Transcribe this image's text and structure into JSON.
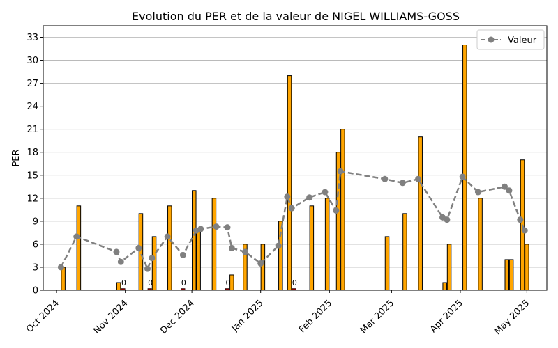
{
  "chart_data": {
    "type": "bar",
    "title": "Evolution du PER et de la valeur de NIGEL WILLIAMS-GOSS",
    "xlabel": "",
    "ylabel": "PER",
    "ylim": [
      0,
      34.5
    ],
    "yticks": [
      0,
      3,
      6,
      9,
      12,
      15,
      18,
      21,
      24,
      27,
      30,
      33
    ],
    "xlim": [
      "2024-09-25",
      "2025-05-10"
    ],
    "xticks": [
      {
        "date": "2024-10-01",
        "label": "Oct 2024"
      },
      {
        "date": "2024-11-01",
        "label": "Nov 2024"
      },
      {
        "date": "2024-12-01",
        "label": "Dec 2024"
      },
      {
        "date": "2025-01-01",
        "label": "Jan 2025"
      },
      {
        "date": "2025-02-01",
        "label": "Feb 2025"
      },
      {
        "date": "2025-03-01",
        "label": "Mar 2025"
      },
      {
        "date": "2025-04-01",
        "label": "Apr 2025"
      },
      {
        "date": "2025-05-01",
        "label": "May 2025"
      }
    ],
    "grid": "y",
    "legend_position": "top-right",
    "bar_color": "#FFA500",
    "bar_edge_color": "#000000",
    "zero_bar_color": "#8B0000",
    "line_color": "#808080",
    "per_bars": [
      {
        "date": "2024-10-04",
        "value": 3
      },
      {
        "date": "2024-10-11",
        "value": 11
      },
      {
        "date": "2024-10-29",
        "value": 1
      },
      {
        "date": "2024-10-31",
        "value": 0
      },
      {
        "date": "2024-11-08",
        "value": 10
      },
      {
        "date": "2024-11-12",
        "value": 0
      },
      {
        "date": "2024-11-14",
        "value": 7
      },
      {
        "date": "2024-11-21",
        "value": 11
      },
      {
        "date": "2024-11-27",
        "value": 0
      },
      {
        "date": "2024-12-02",
        "value": 13
      },
      {
        "date": "2024-12-04",
        "value": 8
      },
      {
        "date": "2024-12-11",
        "value": 12
      },
      {
        "date": "2024-12-17",
        "value": 0
      },
      {
        "date": "2024-12-19",
        "value": 2
      },
      {
        "date": "2024-12-25",
        "value": 6
      },
      {
        "date": "2025-01-02",
        "value": 6
      },
      {
        "date": "2025-01-10",
        "value": 9
      },
      {
        "date": "2025-01-14",
        "value": 28
      },
      {
        "date": "2025-01-16",
        "value": 0
      },
      {
        "date": "2025-01-24",
        "value": 11
      },
      {
        "date": "2025-01-31",
        "value": 12
      },
      {
        "date": "2025-02-05",
        "value": 18
      },
      {
        "date": "2025-02-07",
        "value": 21
      },
      {
        "date": "2025-02-27",
        "value": 7
      },
      {
        "date": "2025-03-07",
        "value": 10
      },
      {
        "date": "2025-03-14",
        "value": 20
      },
      {
        "date": "2025-03-25",
        "value": 1
      },
      {
        "date": "2025-03-27",
        "value": 6
      },
      {
        "date": "2025-04-03",
        "value": 32
      },
      {
        "date": "2025-04-10",
        "value": 12
      },
      {
        "date": "2025-04-22",
        "value": 4
      },
      {
        "date": "2025-04-24",
        "value": 4
      },
      {
        "date": "2025-04-29",
        "value": 17
      },
      {
        "date": "2025-05-01",
        "value": 6
      }
    ],
    "series": [
      {
        "name": "Valeur",
        "type": "line",
        "points": [
          {
            "date": "2024-10-03",
            "value": 3.0
          },
          {
            "date": "2024-10-10",
            "value": 7.0
          },
          {
            "date": "2024-10-28",
            "value": 5.0
          },
          {
            "date": "2024-10-30",
            "value": 3.7
          },
          {
            "date": "2024-11-07",
            "value": 5.5
          },
          {
            "date": "2024-11-11",
            "value": 2.8
          },
          {
            "date": "2024-11-13",
            "value": 4.2
          },
          {
            "date": "2024-11-20",
            "value": 7.0
          },
          {
            "date": "2024-11-27",
            "value": 4.6
          },
          {
            "date": "2024-12-03",
            "value": 7.8
          },
          {
            "date": "2024-12-05",
            "value": 8.0
          },
          {
            "date": "2024-12-12",
            "value": 8.3
          },
          {
            "date": "2024-12-17",
            "value": 8.2
          },
          {
            "date": "2024-12-19",
            "value": 5.5
          },
          {
            "date": "2024-12-25",
            "value": 5.0
          },
          {
            "date": "2025-01-01",
            "value": 3.5
          },
          {
            "date": "2025-01-09",
            "value": 5.8
          },
          {
            "date": "2025-01-13",
            "value": 12.2
          },
          {
            "date": "2025-01-15",
            "value": 10.7
          },
          {
            "date": "2025-01-23",
            "value": 12.1
          },
          {
            "date": "2025-01-30",
            "value": 12.8
          },
          {
            "date": "2025-02-04",
            "value": 10.4
          },
          {
            "date": "2025-02-06",
            "value": 15.5
          },
          {
            "date": "2025-02-26",
            "value": 14.5
          },
          {
            "date": "2025-03-06",
            "value": 14.0
          },
          {
            "date": "2025-03-13",
            "value": 14.5
          },
          {
            "date": "2025-03-24",
            "value": 9.5
          },
          {
            "date": "2025-03-26",
            "value": 9.2
          },
          {
            "date": "2025-04-02",
            "value": 14.8
          },
          {
            "date": "2025-04-09",
            "value": 12.8
          },
          {
            "date": "2025-04-21",
            "value": 13.5
          },
          {
            "date": "2025-04-23",
            "value": 13.0
          },
          {
            "date": "2025-04-28",
            "value": 9.2
          },
          {
            "date": "2025-04-30",
            "value": 7.8
          }
        ]
      }
    ]
  }
}
